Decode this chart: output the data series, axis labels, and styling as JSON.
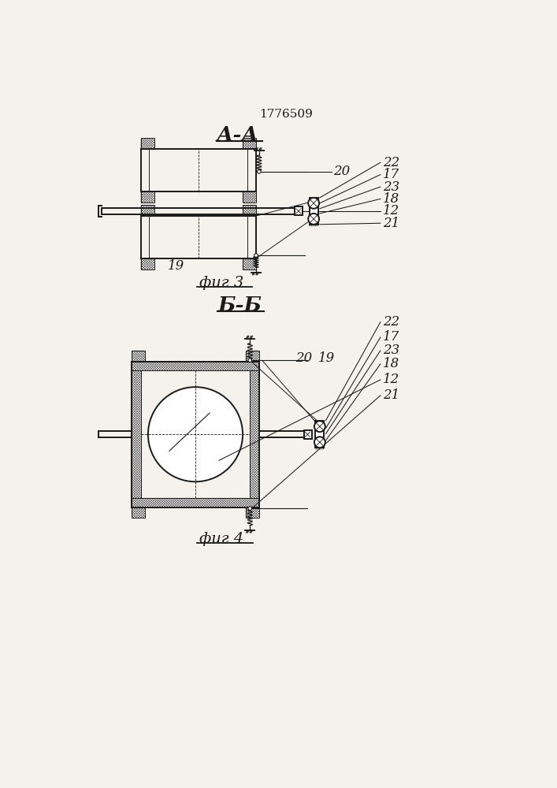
{
  "patent_number": "1776509",
  "fig3_label": "А-А",
  "fig3_caption": "фиг 3",
  "fig4_label": "Б-Б",
  "fig4_caption": "фиг 4",
  "bg_color": "#f5f2ed",
  "line_color": "#1a1a1a",
  "lw_main": 1.4,
  "lw_thin": 0.8,
  "lw_hatch": 0.5
}
